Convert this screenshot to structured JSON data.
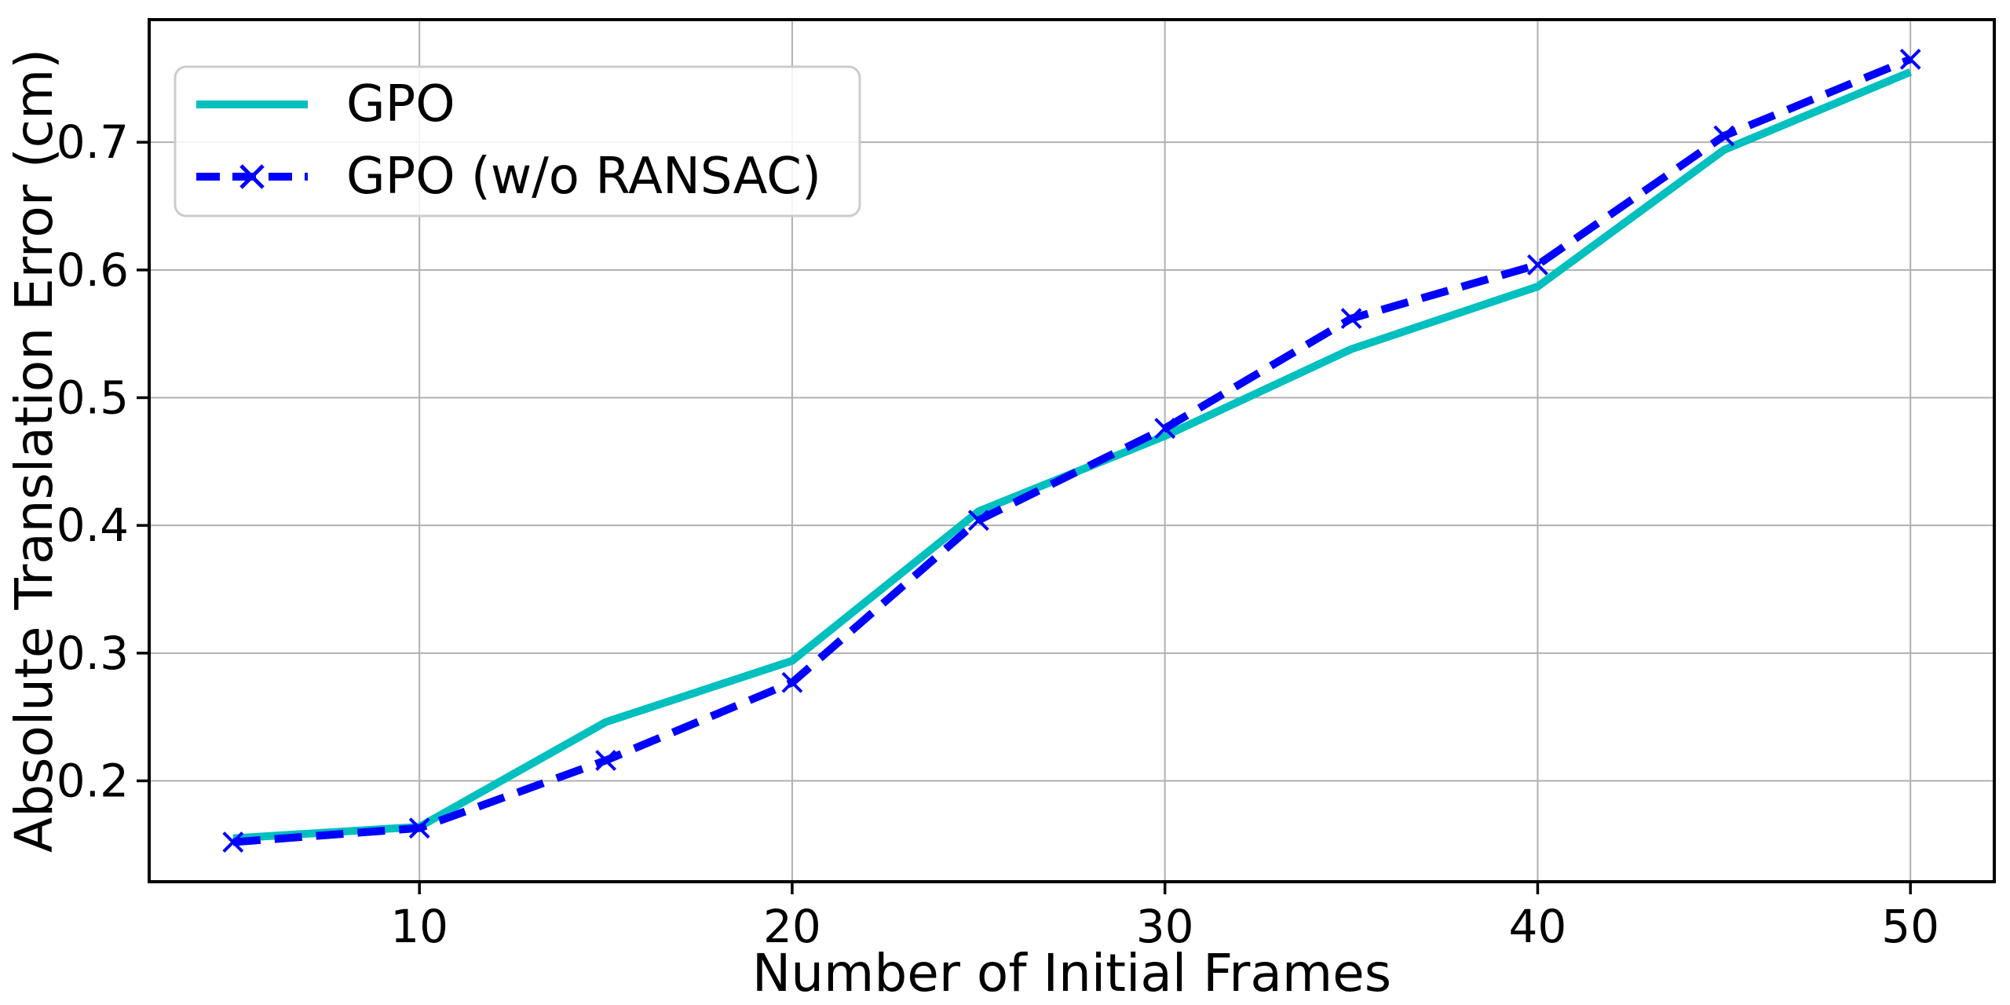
{
  "chart_data": {
    "type": "line",
    "title": "",
    "xlabel": "Number of Initial Frames",
    "ylabel": "Absolute Translation Error (cm)",
    "x": [
      5,
      10,
      15,
      20,
      25,
      30,
      35,
      40,
      45,
      50
    ],
    "series": [
      {
        "name": "GPO",
        "color": "#00BFBF",
        "style": "solid",
        "marker": "none",
        "values": [
          0.155,
          0.164,
          0.246,
          0.294,
          0.411,
          0.47,
          0.538,
          0.587,
          0.694,
          0.755
        ]
      },
      {
        "name": "GPO (w/o RANSAC)",
        "color": "#0000FF",
        "style": "dashed",
        "marker": "x",
        "values": [
          0.152,
          0.163,
          0.216,
          0.277,
          0.404,
          0.476,
          0.562,
          0.604,
          0.705,
          0.765
        ]
      }
    ],
    "xticks": [
      10,
      20,
      30,
      40,
      50
    ],
    "xticklabels": [
      "10",
      "20",
      "30",
      "40",
      "50"
    ],
    "yticks": [
      0.2,
      0.3,
      0.4,
      0.5,
      0.6,
      0.7
    ],
    "yticklabels": [
      "0.2",
      "0.3",
      "0.4",
      "0.5",
      "0.6",
      "0.7"
    ],
    "xlim": [
      2.75,
      52.25
    ],
    "ylim": [
      0.121,
      0.796
    ],
    "grid": true,
    "grid_color": "#B0B0B0",
    "spine_color": "#000000",
    "text_color": "#000000",
    "legend_position": "upper left"
  }
}
